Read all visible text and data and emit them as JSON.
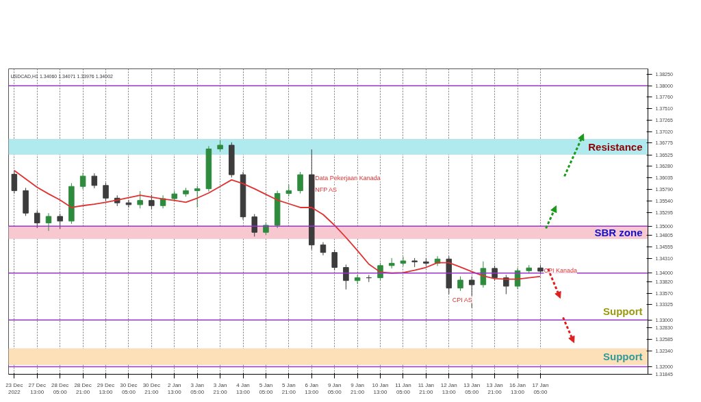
{
  "chart_data": {
    "type": "candlestick",
    "categories": [
      "23 Dec 2022",
      null,
      "27 Dec 13:00",
      null,
      "28 Dec 05:00",
      null,
      "28 Dec 21:00",
      null,
      "29 Dec 13:00",
      null,
      "30 Dec 05:00",
      null,
      "30 Dec 21:00",
      null,
      "2 Jan 13:00",
      null,
      "3 Jan 05:00",
      null,
      "3 Jan 21:00",
      null,
      "4 Jan 13:00",
      null,
      "5 Jan 05:00",
      null,
      "5 Jan 21:00",
      null,
      "6 Jan 13:00",
      null,
      "9 Jan 05:00",
      null,
      "9 Jan 21:00",
      null,
      "10 Jan 13:00",
      null,
      "11 Jan 05:00",
      null,
      "11 Jan 21:00",
      null,
      "12 Jan 13:00",
      null,
      "13 Jan 05:00",
      null,
      "13 Jan 21:00",
      null,
      "16 Jan 13:00",
      null,
      "17 Jan 05:00"
    ],
    "ohlc": [
      [
        1.3611,
        1.3618,
        1.357,
        1.3576
      ],
      [
        1.3576,
        1.3582,
        1.3522,
        1.3528
      ],
      [
        1.3528,
        1.3534,
        1.3496,
        1.3507
      ],
      [
        1.3507,
        1.3528,
        1.349,
        1.3521
      ],
      [
        1.3521,
        1.3527,
        1.3494,
        1.3511
      ],
      [
        1.3511,
        1.3592,
        1.3505,
        1.3585
      ],
      [
        1.3585,
        1.3614,
        1.3579,
        1.3607
      ],
      [
        1.3607,
        1.3613,
        1.3581,
        1.3587
      ],
      [
        1.3587,
        1.3593,
        1.3554,
        1.356
      ],
      [
        1.356,
        1.3566,
        1.3543,
        1.355
      ],
      [
        1.355,
        1.3556,
        1.354,
        1.3546
      ],
      [
        1.3546,
        1.3575,
        1.3538,
        1.3555
      ],
      [
        1.3555,
        1.3567,
        1.3537,
        1.3544
      ],
      [
        1.3544,
        1.3566,
        1.3538,
        1.3559
      ],
      [
        1.3559,
        1.3575,
        1.3553,
        1.3569
      ],
      [
        1.3569,
        1.3582,
        1.3563,
        1.3576
      ],
      [
        1.3576,
        1.3586,
        1.354,
        1.358
      ],
      [
        1.358,
        1.3671,
        1.3574,
        1.3665
      ],
      [
        1.3665,
        1.3684,
        1.3659,
        1.3673
      ],
      [
        1.3673,
        1.3679,
        1.3604,
        1.361
      ],
      [
        1.361,
        1.3616,
        1.3514,
        1.352
      ],
      [
        1.352,
        1.3526,
        1.3478,
        1.3487
      ],
      [
        1.3487,
        1.3508,
        1.3481,
        1.3502
      ],
      [
        1.3502,
        1.3576,
        1.3496,
        1.357
      ],
      [
        1.357,
        1.3589,
        1.3564,
        1.3576
      ],
      [
        1.3576,
        1.3616,
        1.357,
        1.361
      ],
      [
        1.361,
        1.3664,
        1.345,
        1.346
      ],
      [
        1.346,
        1.3466,
        1.3438,
        1.3444
      ],
      [
        1.3444,
        1.345,
        1.3406,
        1.3412
      ],
      [
        1.3412,
        1.3418,
        1.3365,
        1.3384
      ],
      [
        1.3384,
        1.3396,
        1.3377,
        1.339
      ],
      [
        1.339,
        1.3396,
        1.3381,
        1.339
      ],
      [
        1.339,
        1.3422,
        1.3384,
        1.3416
      ],
      [
        1.3416,
        1.3432,
        1.341,
        1.3421
      ],
      [
        1.3421,
        1.3435,
        1.3415,
        1.3426
      ],
      [
        1.3426,
        1.3432,
        1.3413,
        1.3424
      ],
      [
        1.3424,
        1.3432,
        1.3415,
        1.3421
      ],
      [
        1.3421,
        1.3436,
        1.3415,
        1.343
      ],
      [
        1.343,
        1.3436,
        1.3355,
        1.3368
      ],
      [
        1.3368,
        1.3393,
        1.3362,
        1.3385
      ],
      [
        1.3385,
        1.3393,
        1.3326,
        1.3375
      ],
      [
        1.3375,
        1.3425,
        1.3369,
        1.341
      ],
      [
        1.341,
        1.3416,
        1.3384,
        1.339
      ],
      [
        1.339,
        1.3396,
        1.3355,
        1.3372
      ],
      [
        1.3372,
        1.3411,
        1.3366,
        1.3405
      ],
      [
        1.3405,
        1.3417,
        1.3399,
        1.3411
      ],
      [
        1.3411,
        1.3417,
        1.3398,
        1.3404
      ]
    ],
    "colors": [
      "#3c3c3c",
      "#3c3c3c",
      "#3c3c3c",
      "#2e8b3e",
      "#3c3c3c",
      "#2e8b3e",
      "#2e8b3e",
      "#3c3c3c",
      "#3c3c3c",
      "#3c3c3c",
      "#3c3c3c",
      "#2e8b3e",
      "#3c3c3c",
      "#2e8b3e",
      "#2e8b3e",
      "#2e8b3e",
      "#2e8b3e",
      "#2e8b3e",
      "#2e8b3e",
      "#3c3c3c",
      "#3c3c3c",
      "#3c3c3c",
      "#2e8b3e",
      "#2e8b3e",
      "#2e8b3e",
      "#2e8b3e",
      "#3c3c3c",
      "#3c3c3c",
      "#3c3c3c",
      "#3c3c3c",
      "#2e8b3e",
      "#3c3c3c",
      "#2e8b3e",
      "#2e8b3e",
      "#2e8b3e",
      "#3c3c3c",
      "#3c3c3c",
      "#2e8b3e",
      "#3c3c3c",
      "#2e8b3e",
      "#3c3c3c",
      "#2e8b3e",
      "#3c3c3c",
      "#3c3c3c",
      "#2e8b3e",
      "#2e8b3e",
      "#3c3c3c"
    ],
    "series": [
      {
        "type": "line",
        "color": "#e03030",
        "values": [
          1.3619,
          1.3601,
          1.3583,
          1.3569,
          1.3556,
          1.354,
          1.3544,
          1.3547,
          1.3551,
          1.3556,
          1.3561,
          1.3566,
          1.3562,
          1.3558,
          1.3555,
          1.3551,
          1.356,
          1.3571,
          1.3585,
          1.3599,
          1.3591,
          1.358,
          1.3568,
          1.3556,
          1.3548,
          1.354,
          1.354,
          1.3525,
          1.3502,
          1.3476,
          1.3448,
          1.3419,
          1.3402,
          1.34,
          1.3401,
          1.3406,
          1.3412,
          1.3422,
          1.3422,
          1.3413,
          1.3403,
          1.3394,
          1.3388,
          1.3387,
          1.3387,
          1.339,
          1.3393
        ]
      }
    ],
    "ylim": [
      1.3184,
      1.3836
    ],
    "yticks": [
      {
        "value": 1.3825,
        "label": "1.38250"
      },
      {
        "value": 1.38,
        "label": "1.38000"
      },
      {
        "value": 1.3776,
        "label": "1.37760"
      },
      {
        "value": 1.3751,
        "label": "1.37510"
      },
      {
        "value": 1.37265,
        "label": "1.37265"
      },
      {
        "value": 1.3702,
        "label": "1.37020"
      },
      {
        "value": 1.36775,
        "label": "1.36775"
      },
      {
        "value": 1.36525,
        "label": "1.36525"
      },
      {
        "value": 1.3628,
        "label": "1.36280"
      },
      {
        "value": 1.36035,
        "label": "1.36035"
      },
      {
        "value": 1.3579,
        "label": "1.35790"
      },
      {
        "value": 1.3554,
        "label": "1.35540"
      },
      {
        "value": 1.35295,
        "label": "1.35295"
      },
      {
        "value": 1.35,
        "label": "1.35000"
      },
      {
        "value": 1.34805,
        "label": "1.34805"
      },
      {
        "value": 1.34555,
        "label": "1.34555"
      },
      {
        "value": 1.3431,
        "label": "1.34310"
      },
      {
        "value": 1.34,
        "label": "1.34000"
      },
      {
        "value": 1.3382,
        "label": "1.33820"
      },
      {
        "value": 1.3357,
        "label": "1.33570"
      },
      {
        "value": 1.33325,
        "label": "1.33325"
      },
      {
        "value": 1.33,
        "label": "1.33000"
      },
      {
        "value": 1.3283,
        "label": "1.32830"
      },
      {
        "value": 1.32585,
        "label": "1.32585"
      },
      {
        "value": 1.3234,
        "label": "1.32340"
      },
      {
        "value": 1.32,
        "label": "1.32000"
      },
      {
        "value": 1.31845,
        "label": "1.31845"
      }
    ],
    "grid": "x",
    "ref_lines": [
      {
        "axis": "y",
        "value": 1.38,
        "color": "#9933cc"
      },
      {
        "axis": "y",
        "value": 1.35,
        "color": "#9933cc"
      },
      {
        "axis": "y",
        "value": 1.34,
        "color": "#9933cc"
      },
      {
        "axis": "y",
        "value": 1.33,
        "color": "#9933cc",
        "label": "Support"
      },
      {
        "axis": "y",
        "value": 1.32,
        "color": "#9933cc"
      }
    ],
    "bands": [
      {
        "axis": "y",
        "from": 1.3653,
        "to": 1.3686,
        "color": "#b0eaee",
        "label": "Resistance"
      },
      {
        "axis": "y",
        "from": 1.3473,
        "to": 1.35,
        "color": "#f8c8d0",
        "label": "SBR zone"
      },
      {
        "axis": "y",
        "from": 1.3204,
        "to": 1.3239,
        "color": "#fde0b8",
        "label": "Support"
      }
    ],
    "annotations": [
      "USDCAD,H1 1.34060 1.34071 1.33976 1.34002",
      {
        "text": "Data Pekerjaan Kanada",
        "x": "6 Jan 13:00",
        "y": 1.3614
      },
      {
        "text": "NFP AS",
        "x": "6 Jan 13:00",
        "y": 1.359
      },
      {
        "text": "CPI AS",
        "x": "12 Jan 13:00",
        "y": 1.3355
      },
      {
        "text": "CPI Kanada",
        "x": "17 Jan 05:00",
        "y": 1.3417
      }
    ]
  }
}
